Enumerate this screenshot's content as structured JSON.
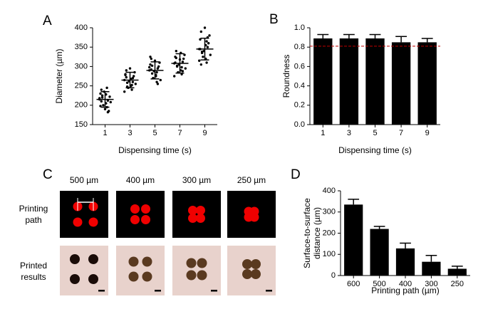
{
  "chart_data": [
    {
      "type": "scatter",
      "panel_label": "A",
      "xlabel": "Dispensing time (s)",
      "ylabel": "Diameter (µm)",
      "categories": [
        "1",
        "3",
        "5",
        "7",
        "9"
      ],
      "points": [
        [
          218,
          205,
          230,
          195,
          240,
          212,
          225,
          185,
          200,
          222,
          235,
          208,
          190,
          215,
          228,
          198,
          245,
          210,
          182,
          220
        ],
        [
          265,
          250,
          280,
          240,
          290,
          270,
          258,
          275,
          245,
          285,
          262,
          255,
          295,
          235,
          268,
          278,
          252,
          272,
          260,
          248
        ],
        [
          290,
          275,
          305,
          260,
          320,
          295,
          282,
          300,
          270,
          310,
          288,
          265,
          315,
          298,
          278,
          325,
          285,
          292,
          255,
          302
        ],
        [
          308,
          290,
          325,
          280,
          340,
          312,
          300,
          320,
          285,
          330,
          305,
          295,
          318,
          275,
          335,
          310,
          298,
          322,
          288,
          302
        ],
        [
          345,
          320,
          370,
          310,
          390,
          350,
          335,
          360,
          325,
          380,
          340,
          330,
          400,
          315,
          355,
          345,
          365,
          305,
          375,
          338
        ]
      ],
      "values": [
        215,
        265,
        290,
        308,
        345
      ],
      "errors": [
        20,
        20,
        22,
        25,
        28
      ],
      "color": "#000000",
      "ylim": [
        150,
        400
      ],
      "yticks": [
        150,
        200,
        250,
        300,
        350,
        400
      ]
    },
    {
      "type": "bar",
      "panel_label": "B",
      "xlabel": "Dispensing time (s)",
      "ylabel": "Roundness",
      "categories": [
        "1",
        "3",
        "5",
        "7",
        "9"
      ],
      "values": [
        0.89,
        0.89,
        0.89,
        0.85,
        0.85
      ],
      "errors": [
        0.04,
        0.04,
        0.04,
        0.06,
        0.04
      ],
      "color": "#000000",
      "ylim": [
        0,
        1
      ],
      "yticks": [
        {
          "value": 0,
          "label": "0.0"
        },
        0.2,
        0.4,
        0.6,
        0.8,
        {
          "value": 1,
          "label": "1.0"
        }
      ],
      "reference_line": {
        "value": 0.81,
        "color": "#c00000",
        "style": "dashed"
      }
    },
    {
      "type": "bar",
      "panel_label": "D",
      "xlabel": "Printing path (µm)",
      "ylabel": [
        "Surface-to-surface",
        "distance (µm)"
      ],
      "categories": [
        "600",
        "500",
        "400",
        "300",
        "250"
      ],
      "values": [
        335,
        220,
        128,
        65,
        32
      ],
      "errors": [
        25,
        12,
        25,
        30,
        12
      ],
      "color": "#000000",
      "ylim": [
        0,
        400
      ],
      "yticks": [
        0,
        100,
        200,
        300,
        400
      ]
    }
  ],
  "panel_c": {
    "panel_label": "C",
    "columns": [
      "500 µm",
      "400 µm",
      "300 µm",
      "250 µm"
    ],
    "rows": [
      [
        "Printing",
        "path"
      ],
      [
        "Printed",
        "results"
      ]
    ]
  }
}
